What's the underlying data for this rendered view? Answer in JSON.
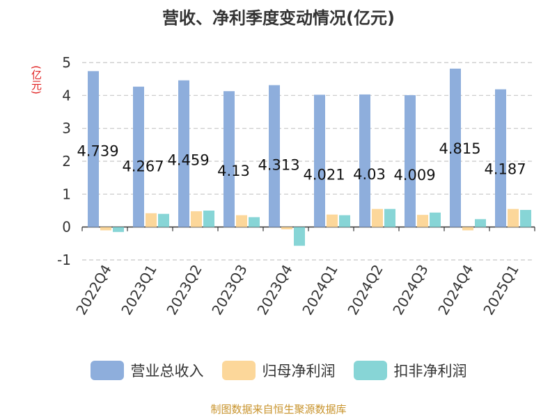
{
  "chart_data": {
    "type": "bar",
    "title": "营收、净利季度变动情况(亿元)",
    "ylabel": "(亿元)",
    "ylim": [
      -1,
      5
    ],
    "yticks": [
      -1,
      0,
      1,
      2,
      3,
      4,
      5
    ],
    "grid": true,
    "legend_position": "bottom",
    "categories": [
      "2022Q4",
      "2023Q1",
      "2023Q2",
      "2023Q3",
      "2023Q4",
      "2024Q1",
      "2024Q2",
      "2024Q3",
      "2024Q4",
      "2025Q1"
    ],
    "series": [
      {
        "name": "营业总收入",
        "color": "#8eaedc",
        "values": [
          4.739,
          4.267,
          4.459,
          4.13,
          4.313,
          4.021,
          4.03,
          4.009,
          4.815,
          4.187
        ],
        "labels": [
          "4.739",
          "4.267",
          "4.459",
          "4.13",
          "4.313",
          "4.021",
          "4.03",
          "4.009",
          "4.815",
          "4.187"
        ]
      },
      {
        "name": "归母净利润",
        "color": "#fcd79a",
        "values": [
          -0.1,
          0.42,
          0.48,
          0.36,
          -0.07,
          0.38,
          0.55,
          0.37,
          -0.1,
          0.55
        ]
      },
      {
        "name": "扣非净利润",
        "color": "#87d5d6",
        "values": [
          -0.15,
          0.4,
          0.5,
          0.3,
          -0.57,
          0.36,
          0.55,
          0.44,
          0.24,
          0.52
        ]
      }
    ]
  },
  "source": "制图数据来自恒生聚源数据库"
}
